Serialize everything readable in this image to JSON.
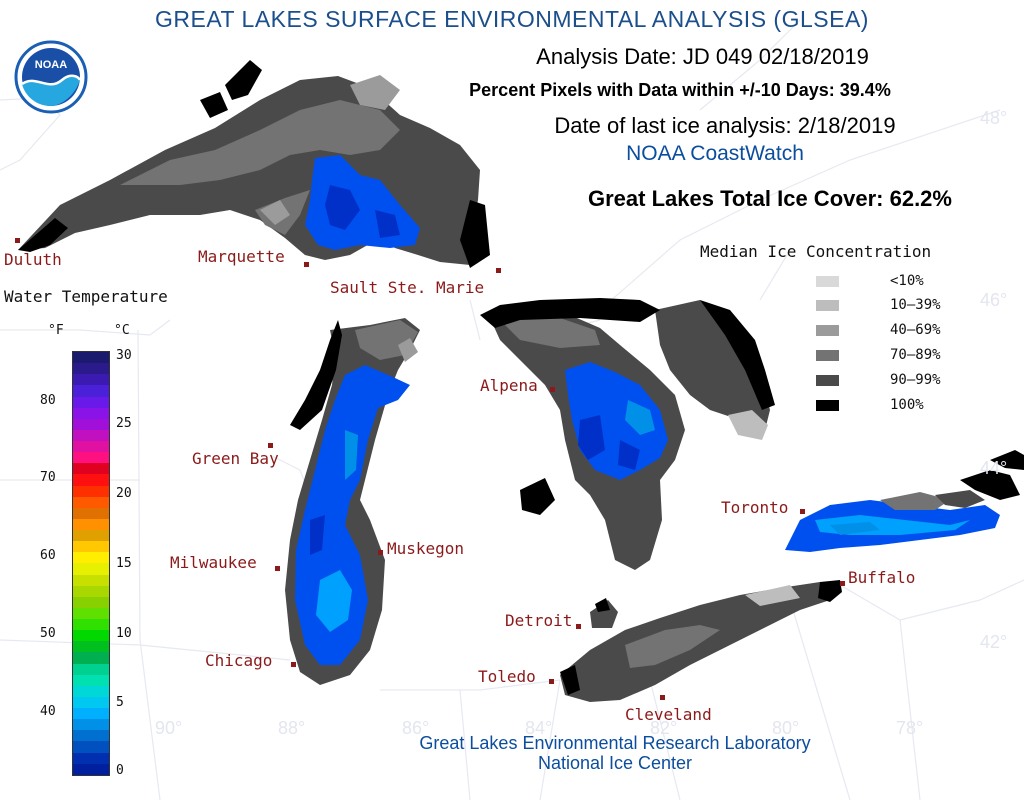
{
  "header": {
    "title": "GREAT LAKES SURFACE ENVIRONMENTAL ANALYSIS (GLSEA)",
    "analysis_date": "Analysis Date:  JD 049 02/18/2019",
    "percent_pixels": "Percent Pixels with Data within +/-10 Days:  39.4%",
    "last_ice_analysis": "Date of last ice analysis: 2/18/2019",
    "source": "NOAA CoastWatch",
    "total_ice_cover": "Great Lakes Total Ice Cover:  62.2%"
  },
  "logo": {
    "text": "NOAA"
  },
  "credits": {
    "line1": "Great Lakes Environmental Research Laboratory",
    "line2": "National Ice Center"
  },
  "ice_legend": {
    "title": "Median Ice Concentration",
    "items": [
      {
        "label": "<10%",
        "color": "#d9d9d9"
      },
      {
        "label": "10–39%",
        "color": "#bdbdbd"
      },
      {
        "label": "40–69%",
        "color": "#9b9b9b"
      },
      {
        "label": "70–89%",
        "color": "#737373"
      },
      {
        "label": "90–99%",
        "color": "#4a4a4a"
      },
      {
        "label": "100%",
        "color": "#000000"
      }
    ]
  },
  "water_temperature": {
    "title": "Water Temperature",
    "unit_f": "°F",
    "unit_c": "°C",
    "f_ticks": [
      "80",
      "70",
      "60",
      "50",
      "40"
    ],
    "c_ticks": [
      "30",
      "25",
      "20",
      "15",
      "10",
      "5",
      "0"
    ],
    "colors": [
      "#1a1a6e",
      "#2a1a8c",
      "#3a1ab0",
      "#4a20d8",
      "#6a1ae8",
      "#8a14e8",
      "#a010d8",
      "#c010c0",
      "#e010a0",
      "#ff1080",
      "#e00020",
      "#ff1010",
      "#ff3000",
      "#ff5a00",
      "#e07000",
      "#ff9000",
      "#e0a000",
      "#ffc800",
      "#ffee00",
      "#e6f000",
      "#c8e000",
      "#a8d800",
      "#88d000",
      "#60e000",
      "#30e000",
      "#00d800",
      "#00c020",
      "#00b050",
      "#00d090",
      "#00e0b0",
      "#00d8d8",
      "#00c8f0",
      "#00b0ff",
      "#0090e8",
      "#0070d0",
      "#0050c0",
      "#0030b0",
      "#0020a0"
    ]
  },
  "cities": [
    {
      "name": "Duluth"
    },
    {
      "name": "Marquette"
    },
    {
      "name": "Sault Ste. Marie"
    },
    {
      "name": "Green Bay"
    },
    {
      "name": "Milwaukee"
    },
    {
      "name": "Chicago"
    },
    {
      "name": "Muskegon"
    },
    {
      "name": "Alpena"
    },
    {
      "name": "Detroit"
    },
    {
      "name": "Toledo"
    },
    {
      "name": "Cleveland"
    },
    {
      "name": "Toronto"
    },
    {
      "name": "Buffalo"
    }
  ],
  "grid_labels": {
    "lat": [
      "48°",
      "46°",
      "44°",
      "42°"
    ],
    "lon": [
      "90°",
      "88°",
      "86°",
      "84°",
      "82°",
      "80°",
      "78°"
    ]
  },
  "colors": {
    "title_blue": "#1b4f8c",
    "credit_blue": "#0b4d9e",
    "city_red": "#8b1a1a",
    "water_deep_blue": "#0030c8",
    "water_blue": "#0050f0",
    "water_light_blue": "#00a0ff",
    "border_line": "#e8ebf2"
  }
}
